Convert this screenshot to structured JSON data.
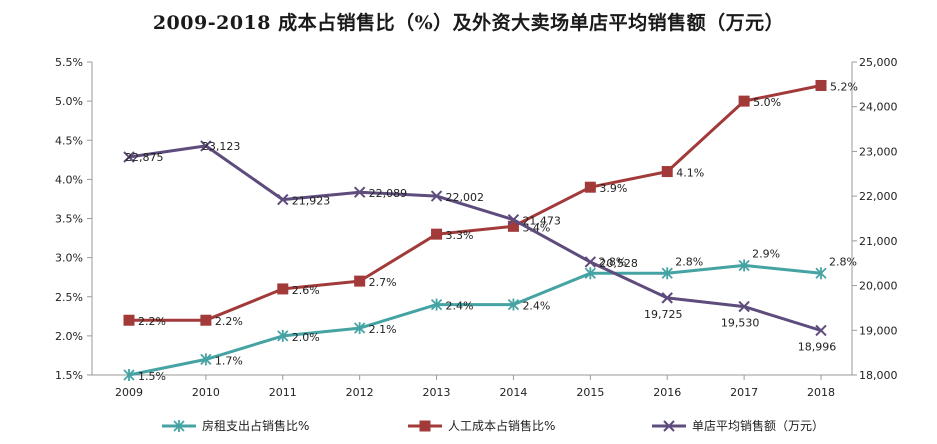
{
  "chart_data": {
    "type": "line",
    "title": "2009-2018 成本占销售比（%）及外资大卖场单店平均销售额（万元）",
    "categories": [
      "2009",
      "2010",
      "2011",
      "2012",
      "2013",
      "2014",
      "2015",
      "2016",
      "2017",
      "2018"
    ],
    "y_left": {
      "ylim": [
        1.5,
        5.5
      ],
      "ticks": [
        "1.5%",
        "2.0%",
        "2.5%",
        "3.0%",
        "3.5%",
        "4.0%",
        "4.5%",
        "5.0%",
        "5.5%"
      ]
    },
    "y_right": {
      "ylim": [
        18000,
        25000
      ],
      "ticks": [
        "18,000",
        "19,000",
        "20,000",
        "21,000",
        "22,000",
        "23,000",
        "24,000",
        "25,000"
      ]
    },
    "grid": false,
    "legend_position": "bottom",
    "series": [
      {
        "name": "房租支出占销售比%",
        "axis": "left",
        "marker": "asterisk",
        "color": "#45a3a3",
        "values": [
          1.5,
          1.7,
          2.0,
          2.1,
          2.4,
          2.4,
          2.8,
          2.8,
          2.9,
          2.8
        ],
        "labels": [
          "1.5%",
          "1.7%",
          "2.0%",
          "2.1%",
          "2.4%",
          "2.4%",
          "2.8%",
          "2.8%",
          "2.9%",
          "2.8%"
        ]
      },
      {
        "name": "人工成本占销售比%",
        "axis": "left",
        "marker": "square",
        "color": "#a23a3a",
        "values": [
          2.2,
          2.2,
          2.6,
          2.7,
          3.3,
          3.4,
          3.9,
          4.1,
          5.0,
          5.2
        ],
        "labels": [
          "2.2%",
          "2.2%",
          "2.6%",
          "2.7%",
          "3.3%",
          "3.4%",
          "3.9%",
          "4.1%",
          "5.0%",
          "5.2%"
        ]
      },
      {
        "name": "单店平均销售额（万元）",
        "axis": "right",
        "marker": "x",
        "color": "#5d4c7c",
        "values": [
          22875,
          23123,
          21923,
          22089,
          22002,
          21473,
          20528,
          19725,
          19530,
          18996
        ],
        "labels": [
          "22,875",
          "23,123",
          "21,923",
          "22,089",
          "22,002",
          "21,473",
          "20,528",
          "19,725",
          "19,530",
          "18,996"
        ]
      }
    ]
  }
}
